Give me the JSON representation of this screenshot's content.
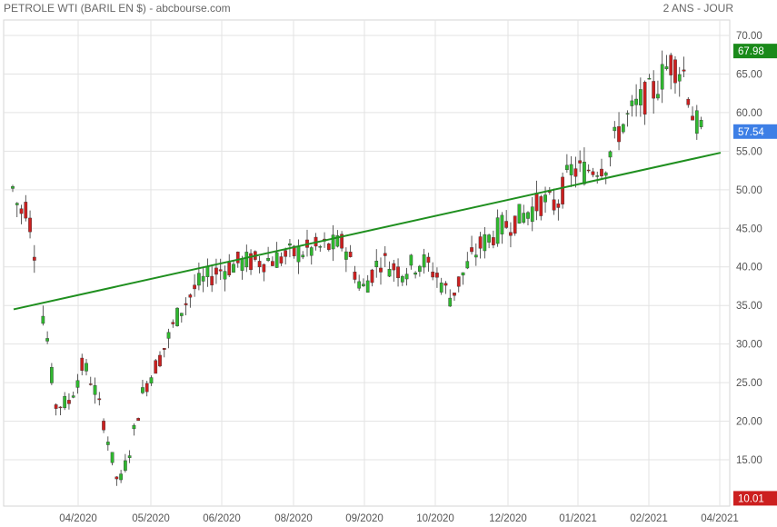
{
  "header": {
    "title": "PETROLE WTI (BARIL EN $) - abcbourse.com",
    "period": "2 ANS - JOUR"
  },
  "colors": {
    "up": "#2fb82f",
    "down": "#cc1f1f",
    "grid": "#e3e3e3",
    "trend": "#1f8f1f",
    "badge_high": "#1a8a1a",
    "badge_last": "#3d7fe6",
    "badge_low": "#cc1f1f"
  },
  "chart_data": {
    "type": "candlestick",
    "title": "PETROLE WTI (BARIL EN $) - abcbourse.com",
    "period": "2 ANS - JOUR",
    "ylim": [
      9,
      72
    ],
    "y_ticks": [
      "15.00",
      "20.00",
      "25.00",
      "30.00",
      "35.00",
      "40.00",
      "45.00",
      "50.00",
      "55.00",
      "60.00",
      "65.00",
      "70.00"
    ],
    "x_ticks": [
      "04/2020",
      "05/2020",
      "06/2020",
      "08/2020",
      "09/2020",
      "10/2020",
      "12/2020",
      "01/2021",
      "02/2021",
      "04/2021"
    ],
    "badges": [
      {
        "label": "67.98",
        "value": 67.98,
        "kind": "high"
      },
      {
        "label": "57.54",
        "value": 57.54,
        "kind": "last"
      },
      {
        "label": "10.01",
        "value": 10.01,
        "kind": "low"
      }
    ],
    "trendline": {
      "start": [
        0,
        34.5
      ],
      "end": [
        1,
        54.8
      ]
    },
    "price_path": [
      [
        0.0,
        50.2
      ],
      [
        0.01,
        47.0
      ],
      [
        0.02,
        48.0
      ],
      [
        0.03,
        43.0
      ],
      [
        0.038,
        35.0
      ],
      [
        0.046,
        33.0
      ],
      [
        0.06,
        22.0
      ],
      [
        0.08,
        22.5
      ],
      [
        0.1,
        27.5
      ],
      [
        0.115,
        24.5
      ],
      [
        0.13,
        19.5
      ],
      [
        0.15,
        11.5
      ],
      [
        0.165,
        16.0
      ],
      [
        0.185,
        24.0
      ],
      [
        0.21,
        28.5
      ],
      [
        0.235,
        34.0
      ],
      [
        0.26,
        37.5
      ],
      [
        0.29,
        39.5
      ],
      [
        0.32,
        40.5
      ],
      [
        0.35,
        40.8
      ],
      [
        0.38,
        41.2
      ],
      [
        0.41,
        42.0
      ],
      [
        0.44,
        42.5
      ],
      [
        0.47,
        43.0
      ],
      [
        0.48,
        40.5
      ],
      [
        0.495,
        37.0
      ],
      [
        0.52,
        41.0
      ],
      [
        0.55,
        39.5
      ],
      [
        0.58,
        40.8
      ],
      [
        0.6,
        39.0
      ],
      [
        0.62,
        36.0
      ],
      [
        0.64,
        39.5
      ],
      [
        0.66,
        42.5
      ],
      [
        0.69,
        45.0
      ],
      [
        0.72,
        46.5
      ],
      [
        0.75,
        48.5
      ],
      [
        0.77,
        48.0
      ],
      [
        0.79,
        52.5
      ],
      [
        0.81,
        52.5
      ],
      [
        0.84,
        53.5
      ],
      [
        0.86,
        58.0
      ],
      [
        0.89,
        61.5
      ],
      [
        0.91,
        63.0
      ],
      [
        0.93,
        66.5
      ],
      [
        0.95,
        65.5
      ],
      [
        0.965,
        59.0
      ],
      [
        0.975,
        57.5
      ]
    ],
    "candles_count": 160,
    "gaps": [
      [
        0.032,
        0.038
      ]
    ]
  }
}
